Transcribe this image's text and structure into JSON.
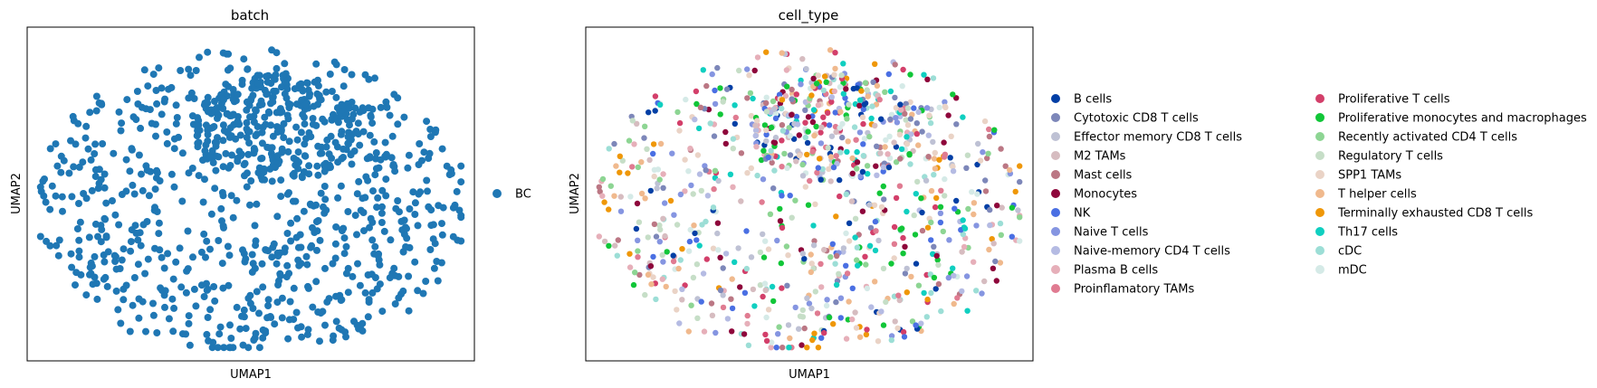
{
  "chart_data": [
    {
      "type": "scatter",
      "title": "batch",
      "xlabel": "UMAP1",
      "ylabel": "UMAP2",
      "grid": false,
      "legend_position": "right",
      "series": [
        {
          "name": "BC",
          "color": "#1f77b4"
        }
      ],
      "point_count": 1000
    },
    {
      "type": "scatter",
      "title": "cell_type",
      "xlabel": "UMAP1",
      "ylabel": "UMAP2",
      "grid": false,
      "legend_position": "right",
      "series": [
        {
          "name": "B cells",
          "color": "#023fa5"
        },
        {
          "name": "Cytotoxic CD8 T cells",
          "color": "#7d87b9"
        },
        {
          "name": "Effector memory CD8 T cells",
          "color": "#bec1d4"
        },
        {
          "name": "M2 TAMs",
          "color": "#d6bcc0"
        },
        {
          "name": "Mast cells",
          "color": "#bb7784"
        },
        {
          "name": "Monocytes",
          "color": "#8e063b"
        },
        {
          "name": "NK",
          "color": "#4a6fe3"
        },
        {
          "name": "Naive T cells",
          "color": "#8595e1"
        },
        {
          "name": "Naive-memory CD4 T cells",
          "color": "#b5bbe3"
        },
        {
          "name": "Plasma B cells",
          "color": "#e6afb9"
        },
        {
          "name": "Proinflamatory TAMs",
          "color": "#e07b91"
        },
        {
          "name": "Proliferative T cells",
          "color": "#d33f6a"
        },
        {
          "name": "Proliferative monocytes and macrophages",
          "color": "#11c638"
        },
        {
          "name": "Recently activated CD4 T cells",
          "color": "#8dd593"
        },
        {
          "name": "Regulatory T cells",
          "color": "#c6dec7"
        },
        {
          "name": "SPP1 TAMs",
          "color": "#ead3c6"
        },
        {
          "name": "T helper cells",
          "color": "#f0b98d"
        },
        {
          "name": "Terminally exhausted CD8 T cells",
          "color": "#ef9708"
        },
        {
          "name": "Th17 cells",
          "color": "#0fcfc0"
        },
        {
          "name": "cDC",
          "color": "#9cded6"
        },
        {
          "name": "mDC",
          "color": "#d5eae7"
        }
      ],
      "point_count": 1000
    }
  ]
}
